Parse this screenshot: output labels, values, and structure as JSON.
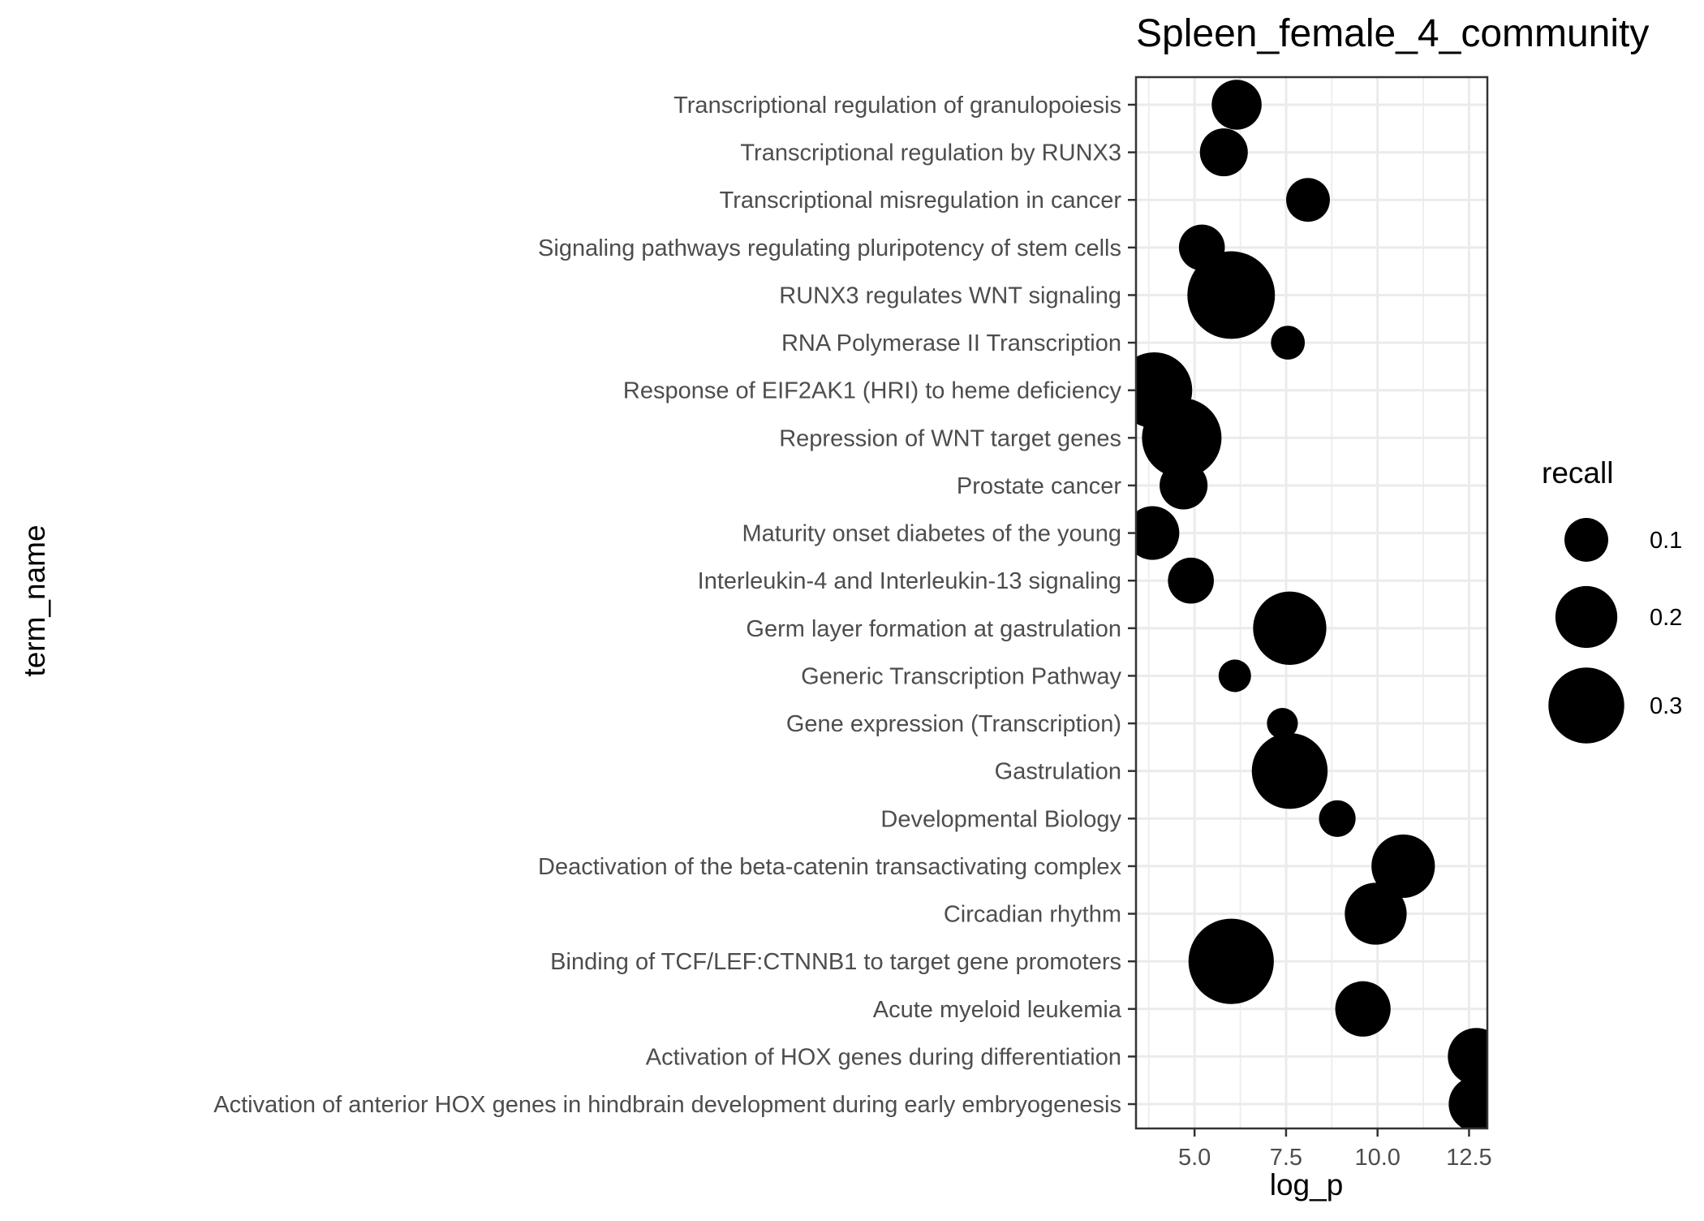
{
  "chart_data": {
    "type": "scatter",
    "title": "Spleen_female_4_community",
    "xlabel": "log_p",
    "ylabel": "term_name",
    "xlim": [
      3.4,
      13.0
    ],
    "x_ticks": [
      "5.0",
      "7.5",
      "10.0",
      "12.5"
    ],
    "x_tick_values": [
      5.0,
      7.5,
      10.0,
      12.5
    ],
    "x_minor_values": [
      3.75,
      6.25,
      8.75,
      11.25
    ],
    "grid": true,
    "legend": {
      "title": "recall",
      "position": "right",
      "entries": [
        {
          "label": "0.1",
          "value": 0.1
        },
        {
          "label": "0.2",
          "value": 0.2
        },
        {
          "label": "0.3",
          "value": 0.3
        }
      ]
    },
    "categories": [
      "Transcriptional regulation of granulopoiesis",
      "Transcriptional regulation by RUNX3",
      "Transcriptional misregulation in cancer",
      "Signaling pathways regulating pluripotency of stem cells",
      "RUNX3 regulates WNT signaling",
      "RNA Polymerase II Transcription",
      "Response of EIF2AK1 (HRI) to heme deficiency",
      "Repression of WNT target genes",
      "Prostate cancer",
      "Maturity onset diabetes of the young",
      "Interleukin-4 and Interleukin-13 signaling",
      "Germ layer formation at gastrulation",
      "Generic Transcription Pathway",
      "Gene expression (Transcription)",
      "Gastrulation",
      "Developmental Biology",
      "Deactivation of the beta-catenin transactivating complex",
      "Circadian rhythm",
      "Binding of TCF/LEF:CTNNB1 to target gene promoters",
      "Acute myeloid leukemia",
      "Activation of HOX genes during differentiation",
      "Activation of anterior HOX genes in hindbrain development during early embryogenesis"
    ],
    "points": [
      {
        "term": "Transcriptional regulation of granulopoiesis",
        "log_p": 6.15,
        "recall": 0.13
      },
      {
        "term": "Transcriptional regulation by RUNX3",
        "log_p": 5.8,
        "recall": 0.12
      },
      {
        "term": "Transcriptional misregulation in cancer",
        "log_p": 8.1,
        "recall": 0.1
      },
      {
        "term": "Signaling pathways regulating pluripotency of stem cells",
        "log_p": 5.2,
        "recall": 0.11
      },
      {
        "term": "RUNX3 regulates WNT signaling",
        "log_p": 6.0,
        "recall": 0.4
      },
      {
        "term": "RNA Polymerase II Transcription",
        "log_p": 7.55,
        "recall": 0.06
      },
      {
        "term": "Response of EIF2AK1 (HRI) to heme deficiency",
        "log_p": 3.9,
        "recall": 0.3
      },
      {
        "term": "Repression of WNT target genes",
        "log_p": 4.65,
        "recall": 0.33
      },
      {
        "term": "Prostate cancer",
        "log_p": 4.7,
        "recall": 0.12
      },
      {
        "term": "Maturity onset diabetes of the young",
        "log_p": 3.85,
        "recall": 0.15
      },
      {
        "term": "Interleukin-4 and Interleukin-13 signaling",
        "log_p": 4.9,
        "recall": 0.11
      },
      {
        "term": "Germ layer formation at gastrulation",
        "log_p": 7.6,
        "recall": 0.28
      },
      {
        "term": "Generic Transcription Pathway",
        "log_p": 6.1,
        "recall": 0.055
      },
      {
        "term": "Gene expression (Transcription)",
        "log_p": 7.4,
        "recall": 0.05
      },
      {
        "term": "Gastrulation",
        "log_p": 7.6,
        "recall": 0.3
      },
      {
        "term": "Developmental Biology",
        "log_p": 8.9,
        "recall": 0.07
      },
      {
        "term": "Deactivation of the beta-catenin transactivating complex",
        "log_p": 10.7,
        "recall": 0.21
      },
      {
        "term": "Circadian rhythm",
        "log_p": 9.95,
        "recall": 0.2
      },
      {
        "term": "Binding of TCF/LEF:CTNNB1 to target gene promoters",
        "log_p": 6.0,
        "recall": 0.38
      },
      {
        "term": "Acute myeloid leukemia",
        "log_p": 9.6,
        "recall": 0.16
      },
      {
        "term": "Activation of HOX genes during differentiation",
        "log_p": 12.7,
        "recall": 0.17
      },
      {
        "term": "Activation of anterior HOX genes in hindbrain development during early embryogenesis",
        "log_p": 12.7,
        "recall": 0.16
      }
    ],
    "colors": {
      "point": "#000000",
      "grid": "#ebebeb",
      "panel_border": "#333333",
      "tick": "#333333",
      "tick_label": "#4d4d4d"
    }
  }
}
